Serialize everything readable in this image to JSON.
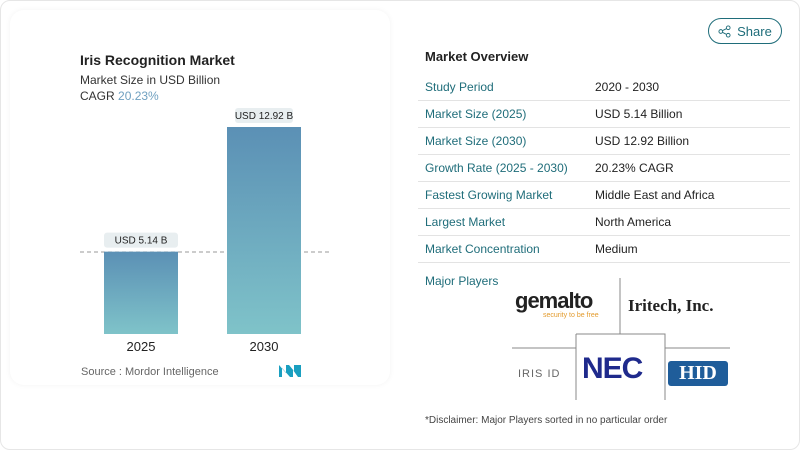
{
  "chart_data": {
    "type": "bar",
    "title": "Iris Recognition Market",
    "subtitle": "Market Size in USD Billion",
    "cagr_label": "CAGR",
    "cagr_value": "20.23%",
    "categories": [
      "2025",
      "2030"
    ],
    "values": [
      5.14,
      12.92
    ],
    "data_labels": [
      "USD 5.14 B",
      "USD 12.92 B"
    ],
    "colors": {
      "top": "#5b90b5",
      "bottom": "#7fc3c9"
    },
    "source": "Source :  Mordor Intelligence"
  },
  "share": {
    "label": "Share",
    "icon": "share-icon"
  },
  "overview": {
    "title": "Market Overview",
    "rows": [
      {
        "k": "Study Period",
        "v": "2020 - 2030"
      },
      {
        "k": "Market Size (2025)",
        "v": "USD 5.14 Billion"
      },
      {
        "k": "Market Size (2030)",
        "v": "USD 12.92 Billion"
      },
      {
        "k": "Growth Rate (2025 - 2030)",
        "v": "20.23% CAGR"
      },
      {
        "k": "Fastest Growing Market",
        "v": "Middle East and Africa"
      },
      {
        "k": "Largest Market",
        "v": "North America"
      },
      {
        "k": "Market Concentration",
        "v": "Medium"
      }
    ],
    "major_players_label": "Major Players",
    "players": [
      "gemalto",
      "security to be free",
      "Iritech, Inc.",
      "IRIS ID",
      "NEC",
      "HID"
    ],
    "disclaimer": "*Disclaimer: Major Players sorted in no particular order"
  }
}
